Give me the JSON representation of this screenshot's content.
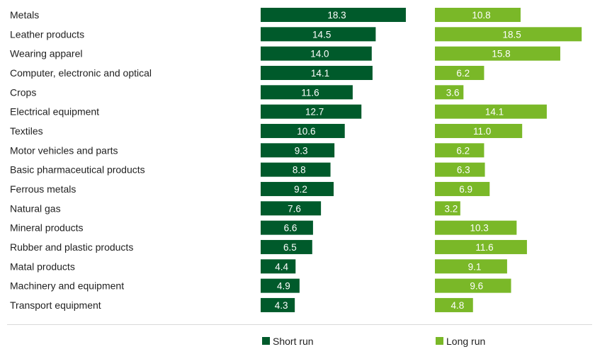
{
  "chart_data": {
    "type": "bar",
    "orientation": "horizontal",
    "categories": [
      "Metals",
      "Leather products",
      "Wearing apparel",
      "Computer, electronic and optical",
      "Crops",
      "Electrical equipment",
      "Textiles",
      "Motor vehicles and parts",
      "Basic pharmaceutical products",
      "Ferrous metals",
      "Natural gas",
      "Mineral products",
      "Rubber and plastic products",
      "Matal products",
      "Machinery and equipment",
      "Transport equipment"
    ],
    "series": [
      {
        "name": "Short run",
        "color": "#005a2b",
        "values": [
          18.3,
          14.5,
          14.0,
          14.1,
          11.6,
          12.7,
          10.6,
          9.3,
          8.8,
          9.2,
          7.6,
          6.6,
          6.5,
          4.4,
          4.9,
          4.3
        ],
        "labels": [
          "18.3",
          "14.5",
          "14.0",
          "14.1",
          "11.6",
          "12.7",
          "10.6",
          "9.3",
          "8.8",
          "9.2",
          "7.6",
          "6.6",
          "6.5",
          "4.4",
          "4.9",
          "4.3"
        ]
      },
      {
        "name": "Long run",
        "color": "#7ab828",
        "values": [
          10.8,
          18.5,
          15.8,
          6.2,
          3.6,
          14.1,
          11.0,
          6.2,
          6.3,
          6.9,
          3.2,
          10.3,
          11.6,
          9.1,
          9.6,
          4.8
        ],
        "labels": [
          "10.8",
          "18.5",
          "15.8",
          "6.2",
          "3.6",
          "14.1",
          "11.0",
          "6.2",
          "6.3",
          "6.9",
          "3.2",
          "10.3",
          "11.6",
          "9.1",
          "9.6",
          "4.8"
        ]
      }
    ],
    "legend": {
      "position": "bottom"
    },
    "title": "",
    "xlabel": "",
    "ylabel": "",
    "grid": false
  }
}
